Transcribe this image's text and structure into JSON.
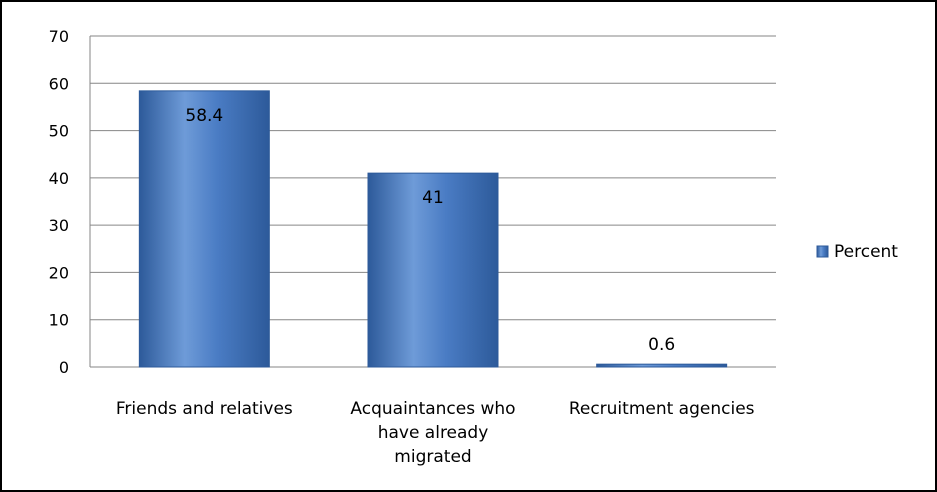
{
  "chart_data": {
    "type": "bar",
    "categories": [
      "Friends and relatives",
      "Acquaintances who have already migrated",
      "Recruitment agencies"
    ],
    "category_label_lines": [
      [
        "Friends and relatives"
      ],
      [
        "Acquaintances who",
        "have already",
        "migrated"
      ],
      [
        "Recruitment agencies"
      ]
    ],
    "series": [
      {
        "name": "Percent",
        "values": [
          58.4,
          41,
          0.6
        ],
        "data_labels": [
          "58.4",
          "41",
          "0.6"
        ]
      }
    ],
    "ylim": [
      0,
      70
    ],
    "y_ticks": [
      0,
      10,
      20,
      30,
      40,
      50,
      60,
      70
    ],
    "grid": true,
    "legend_position": "right",
    "colors": {
      "bar": "#4a7cc4",
      "bar_dark": "#2d5a9a",
      "bar_light": "#6e9bd8",
      "grid": "#868686"
    }
  }
}
